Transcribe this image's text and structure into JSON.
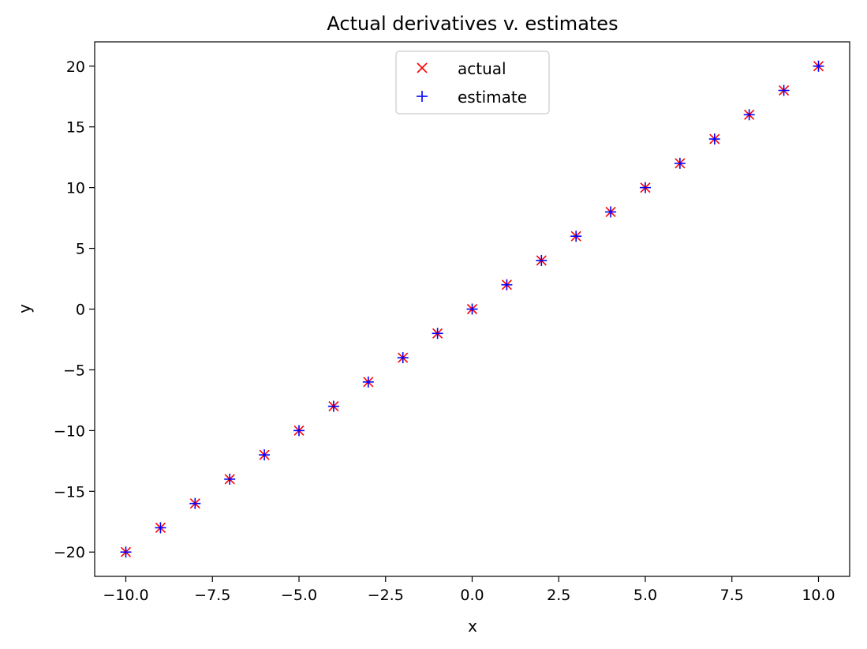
{
  "chart_data": {
    "type": "scatter",
    "title": "Actual derivatives v. estimates",
    "xlabel": "x",
    "ylabel": "y",
    "xlim": [
      -10.9,
      10.9
    ],
    "ylim": [
      -22,
      22
    ],
    "grid": false,
    "legend_position": "top-center",
    "x_ticks": [
      -10.0,
      -7.5,
      -5.0,
      -2.5,
      0.0,
      2.5,
      5.0,
      7.5,
      10.0
    ],
    "x_tick_labels": [
      "−10.0",
      "−7.5",
      "−5.0",
      "−2.5",
      "0.0",
      "2.5",
      "5.0",
      "7.5",
      "10.0"
    ],
    "y_ticks": [
      -20,
      -15,
      -10,
      -5,
      0,
      5,
      10,
      15,
      20
    ],
    "y_tick_labels": [
      "−20",
      "−15",
      "−10",
      "−5",
      "0",
      "5",
      "10",
      "15",
      "20"
    ],
    "series": [
      {
        "name": "actual",
        "marker": "x",
        "color": "#ff0000",
        "x": [
          -10,
          -9,
          -8,
          -7,
          -6,
          -5,
          -4,
          -3,
          -2,
          -1,
          0,
          1,
          2,
          3,
          4,
          5,
          6,
          7,
          8,
          9,
          10
        ],
        "y": [
          -20,
          -18,
          -16,
          -14,
          -12,
          -10,
          -8,
          -6,
          -4,
          -2,
          0,
          2,
          4,
          6,
          8,
          10,
          12,
          14,
          16,
          18,
          20
        ]
      },
      {
        "name": "estimate",
        "marker": "+",
        "color": "#0000ff",
        "x": [
          -10,
          -9,
          -8,
          -7,
          -6,
          -5,
          -4,
          -3,
          -2,
          -1,
          0,
          1,
          2,
          3,
          4,
          5,
          6,
          7,
          8,
          9,
          10
        ],
        "y": [
          -20,
          -18,
          -16,
          -14,
          -12,
          -10,
          -8,
          -6,
          -4,
          -2,
          0,
          2,
          4,
          6,
          8,
          10,
          12,
          14,
          16,
          18,
          20
        ]
      }
    ]
  }
}
